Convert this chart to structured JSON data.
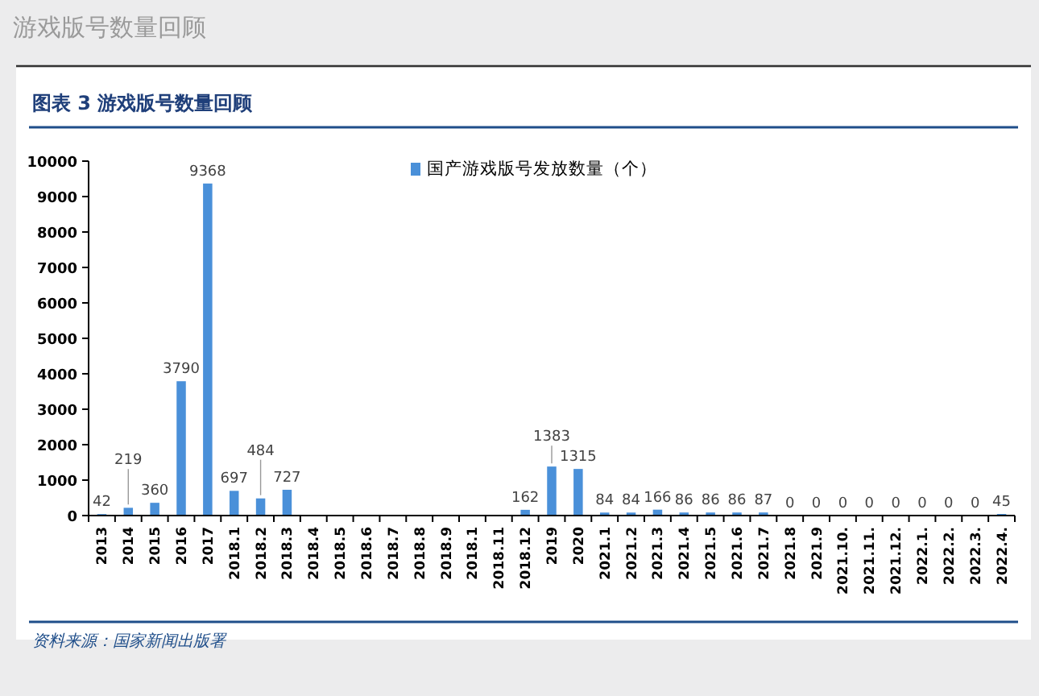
{
  "chart_data": {
    "type": "bar",
    "title": "图表 3  游戏版号数量回顾",
    "subtitle": "游戏版号数量回顾",
    "categories": [
      "2013",
      "2014",
      "2015",
      "2016",
      "2017",
      "2018.1",
      "2018.2",
      "2018.3",
      "2018.4",
      "2018.5",
      "2018.6",
      "2018.7",
      "2018.8",
      "2018.9",
      "2018.1",
      "2018.11",
      "2018.12",
      "2019",
      "2020",
      "2021.1",
      "2021.2",
      "2021.3",
      "2021.4",
      "2021.5",
      "2021.6",
      "2021.7",
      "2021.8",
      "2021.9",
      "2021.10.",
      "2021.11.",
      "2021.12.",
      "2022.1.",
      "2022.2.",
      "2022.3.",
      "2022.4."
    ],
    "series": [
      {
        "name": "国产游戏版号发放数量（个）",
        "color": "#4a90d9",
        "values": [
          42,
          219,
          360,
          3790,
          9368,
          697,
          484,
          727,
          0,
          0,
          0,
          0,
          0,
          0,
          0,
          0,
          162,
          1383,
          1315,
          84,
          84,
          166,
          86,
          86,
          86,
          87,
          0,
          0,
          0,
          0,
          0,
          0,
          0,
          0,
          45
        ],
        "value_labels": [
          "42",
          "219",
          "360",
          "3790",
          "9368",
          "697",
          "484",
          "727",
          null,
          null,
          null,
          null,
          null,
          null,
          null,
          null,
          "162",
          "1383",
          "1315",
          "84",
          "84",
          "166",
          "86",
          "86",
          "86",
          "87",
          "0",
          "0",
          "0",
          "0",
          "0",
          "0",
          "0",
          "0",
          "45"
        ]
      }
    ],
    "ylim": [
      0,
      10000
    ],
    "yticks": [
      0,
      1000,
      2000,
      3000,
      4000,
      5000,
      6000,
      7000,
      8000,
      9000,
      10000
    ],
    "legend": "top",
    "grid": false,
    "annotations": [
      "资料来源：国家新闻出版署"
    ]
  }
}
